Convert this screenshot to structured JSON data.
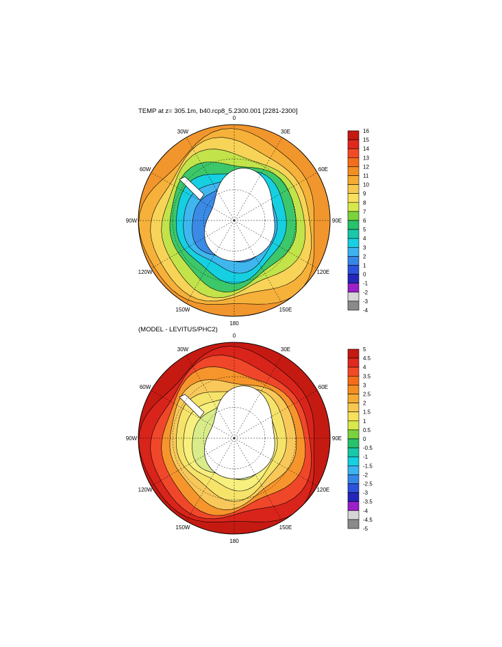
{
  "panels": [
    {
      "title": "TEMP at z= 305.1m, b40.rcp8_5.2300.001 [2281-2300]",
      "colorbar": {
        "labels": [
          "16",
          "15",
          "14",
          "13",
          "12",
          "11",
          "10",
          "9",
          "8",
          "7",
          "6",
          "5",
          "4",
          "3",
          "2",
          "1",
          "0",
          "-1",
          "-2",
          "-3",
          "-4"
        ],
        "colors": [
          "#c41a12",
          "#e0281f",
          "#f24a25",
          "#f46d1b",
          "#f38f22",
          "#f5ab32",
          "#f7c850",
          "#f6e05c",
          "#d6e84a",
          "#7ad23c",
          "#26c36a",
          "#18c8a8",
          "#16cfe0",
          "#3cb3ee",
          "#3586e6",
          "#2c52dc",
          "#2326b8",
          "#9b20c7",
          "#d6d6d6",
          "#8a8a8a"
        ]
      },
      "map_labels": {
        "lon_0": "0",
        "lon_30w": "30W",
        "lon_30e": "30E",
        "lon_60w": "60W",
        "lon_60e": "60E",
        "lon_90w": "90W",
        "lon_90e": "90E",
        "lon_120w": "120W",
        "lon_120e": "120E",
        "lon_150w": "150W",
        "lon_150e": "150E",
        "lon_180": "180"
      },
      "ring_colors": [
        "#f1962c",
        "#f5b13a",
        "#f7d358",
        "#c2e34a",
        "#3cc86a",
        "#16cfe0",
        "#3fb7ee",
        "#3a8ae6"
      ]
    },
    {
      "title": "(MODEL - LEVITUS/PHC2)",
      "colorbar": {
        "labels": [
          "5",
          "4.5",
          "4",
          "3.5",
          "3",
          "2.5",
          "2",
          "1.5",
          "1",
          "0.5",
          "0",
          "-0.5",
          "-1",
          "-1.5",
          "-2",
          "-2.5",
          "-3",
          "-3.5",
          "-4",
          "-4.5",
          "-5"
        ],
        "colors": [
          "#c41a12",
          "#e0281f",
          "#f24a25",
          "#f46d1b",
          "#f38f22",
          "#f5ab32",
          "#f7c850",
          "#f6e05c",
          "#d6e84a",
          "#7ad23c",
          "#26c36a",
          "#18c8a8",
          "#16cfe0",
          "#3cb3ee",
          "#3586e6",
          "#2c52dc",
          "#2326b8",
          "#9b20c7",
          "#d6d6d6",
          "#8a8a8a"
        ]
      },
      "map_labels": {
        "lon_0": "0",
        "lon_30w": "30W",
        "lon_30e": "30E",
        "lon_60w": "60W",
        "lon_60e": "60E",
        "lon_90w": "90W",
        "lon_90e": "90E",
        "lon_120w": "120W",
        "lon_120e": "120E",
        "lon_150w": "150W",
        "lon_150e": "150E",
        "lon_180": "180"
      },
      "ring_colors": [
        "#c41a12",
        "#d8241a",
        "#f0462a",
        "#f5952c",
        "#f8c85a",
        "#f6e36a",
        "#f7f07e",
        "#d8ec8a"
      ]
    }
  ]
}
